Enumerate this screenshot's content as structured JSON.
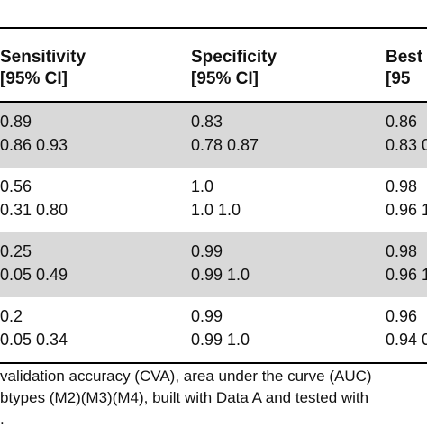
{
  "table": {
    "headers": [
      {
        "line1": "Sensitivity",
        "line2": "[95% CI]"
      },
      {
        "line1": "Specificity",
        "line2": "[95% CI]"
      },
      {
        "line1": "Best",
        "line2": "[95"
      }
    ],
    "rows": [
      {
        "shaded": true,
        "cells": [
          {
            "value": "0.89",
            "ci": "0.86 0.93"
          },
          {
            "value": "0.83",
            "ci": "0.78 0.87"
          },
          {
            "value": "0.86",
            "ci": "0.83 0."
          }
        ]
      },
      {
        "shaded": false,
        "cells": [
          {
            "value": "0.56",
            "ci": "0.31 0.80"
          },
          {
            "value": "1.0",
            "ci": "1.0 1.0"
          },
          {
            "value": "0.98",
            "ci": "0.96 1."
          }
        ]
      },
      {
        "shaded": true,
        "cells": [
          {
            "value": "0.25",
            "ci": "0.05 0.49"
          },
          {
            "value": "0.99",
            "ci": "0.99 1.0"
          },
          {
            "value": "0.98",
            "ci": "0.96 1."
          }
        ]
      },
      {
        "shaded": false,
        "cells": [
          {
            "value": "0.2",
            "ci": "0.05 0.34"
          },
          {
            "value": "0.99",
            "ci": "0.99 1.0"
          },
          {
            "value": "0.96",
            "ci": "0.94 0."
          }
        ]
      }
    ]
  },
  "footnote": {
    "line1": "validation accuracy (CVA), area under the curve (AUC)",
    "line2": "btypes (M2)(M3)(M4), built with Data A and tested with",
    "line3": "."
  }
}
